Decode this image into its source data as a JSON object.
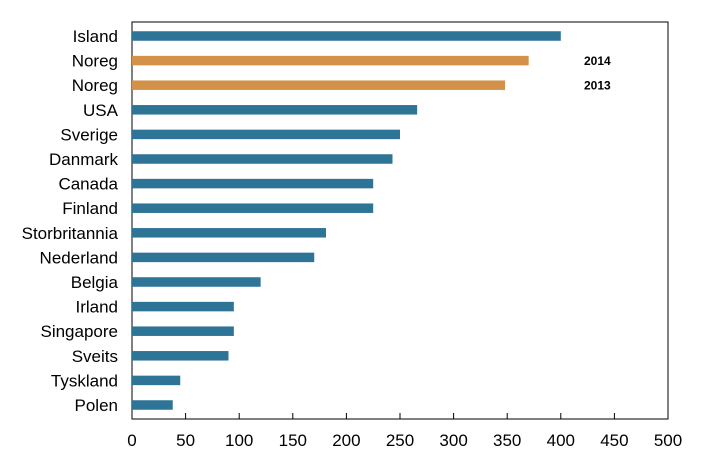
{
  "chart_data": {
    "type": "bar",
    "orientation": "horizontal",
    "categories": [
      "Island",
      "Noreg",
      "Noreg",
      "USA",
      "Sverige",
      "Danmark",
      "Canada",
      "Finland",
      "Storbritannia",
      "Nederland",
      "Belgia",
      "Irland",
      "Singapore",
      "Sveits",
      "Tyskland",
      "Polen"
    ],
    "values": [
      400,
      370,
      348,
      266,
      250,
      243,
      225,
      225,
      181,
      170,
      120,
      95,
      95,
      90,
      45,
      38
    ],
    "bar_colors": [
      "#2e7496",
      "#d4914a",
      "#d4914a",
      "#2e7496",
      "#2e7496",
      "#2e7496",
      "#2e7496",
      "#2e7496",
      "#2e7496",
      "#2e7496",
      "#2e7496",
      "#2e7496",
      "#2e7496",
      "#2e7496",
      "#2e7496",
      "#2e7496"
    ],
    "annotations": [
      {
        "category_index": 1,
        "text": "2014"
      },
      {
        "category_index": 2,
        "text": "2013"
      }
    ],
    "xlim": [
      0,
      500
    ],
    "xticks": [
      0,
      50,
      100,
      150,
      200,
      250,
      300,
      350,
      400,
      450,
      500
    ],
    "title": "",
    "xlabel": "",
    "ylabel": "",
    "grid": false,
    "legend": "none"
  }
}
